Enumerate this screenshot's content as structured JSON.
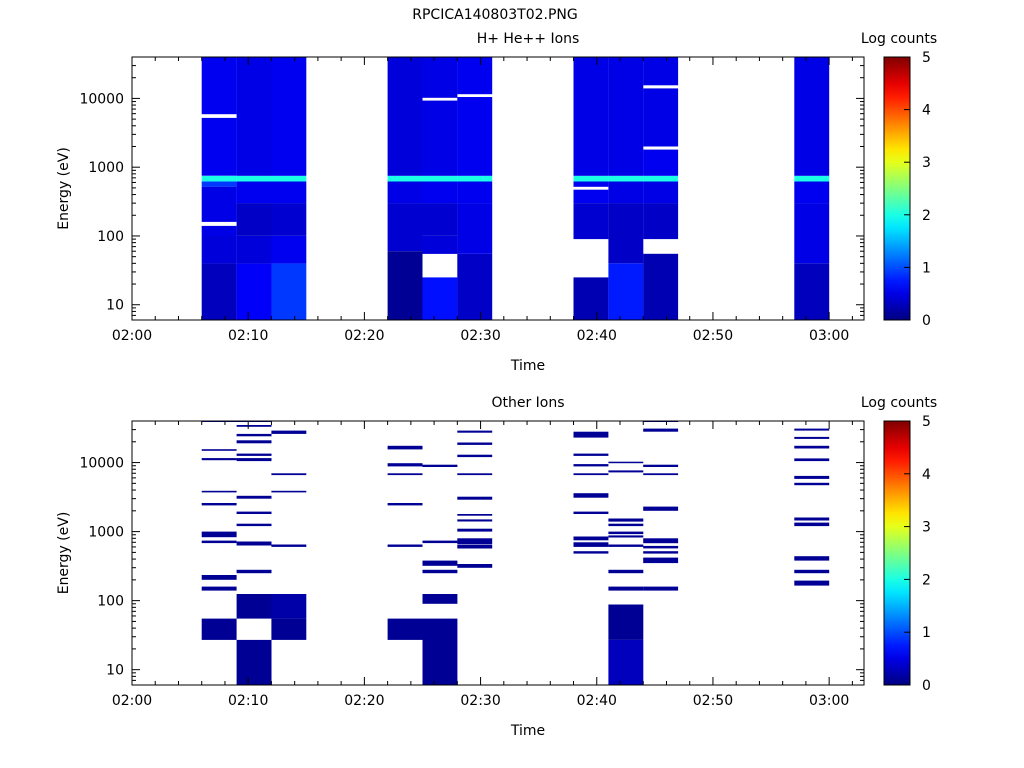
{
  "figure_title": "RPCICA140803T02.PNG",
  "colors": {
    "axis": "#000000",
    "background": "#ffffff"
  },
  "chart_data": [
    {
      "type": "heatmap",
      "title": "H+ He++ Ions",
      "xlabel": "Time",
      "ylabel": "Energy (eV)",
      "xscale": "time",
      "yscale": "log",
      "xlim": [
        "02:00",
        "03:03"
      ],
      "ylim": [
        6,
        40000
      ],
      "x_ticks": [
        "02:00",
        "02:10",
        "02:20",
        "02:30",
        "02:40",
        "02:50",
        "03:00"
      ],
      "y_ticks": [
        "10",
        "100",
        "1000",
        "10000"
      ],
      "colorbar": {
        "label": "Log counts",
        "ticks": [
          "0",
          "1",
          "2",
          "3",
          "4",
          "5"
        ],
        "range": [
          0,
          5
        ],
        "colormap": "jet"
      },
      "columns": [
        {
          "t0": "02:06",
          "t1": "02:09",
          "cells": [
            [
              6,
              40,
              0.3
            ],
            [
              40,
              100,
              0.45
            ],
            [
              100,
              140,
              0.5
            ],
            [
              140,
              160,
              null
            ],
            [
              160,
              520,
              0.5
            ],
            [
              520,
              620,
              0.9
            ],
            [
              620,
              750,
              2.0
            ],
            [
              750,
              5200,
              0.55
            ],
            [
              5200,
              5900,
              null
            ],
            [
              5900,
              40000,
              0.55
            ]
          ]
        },
        {
          "t0": "02:09",
          "t1": "02:12",
          "cells": [
            [
              6,
              40,
              0.6
            ],
            [
              40,
              100,
              0.45
            ],
            [
              100,
              300,
              0.35
            ],
            [
              300,
              620,
              0.55
            ],
            [
              620,
              750,
              2.0
            ],
            [
              750,
              40000,
              0.5
            ]
          ]
        },
        {
          "t0": "02:12",
          "t1": "02:15",
          "cells": [
            [
              6,
              40,
              0.9
            ],
            [
              40,
              100,
              0.55
            ],
            [
              100,
              300,
              0.4
            ],
            [
              300,
              620,
              0.55
            ],
            [
              620,
              750,
              2.0
            ],
            [
              750,
              40000,
              0.55
            ]
          ]
        },
        {
          "t0": "02:22",
          "t1": "02:25",
          "cells": [
            [
              6,
              60,
              0.1
            ],
            [
              60,
              300,
              0.4
            ],
            [
              300,
              620,
              0.5
            ],
            [
              620,
              750,
              2.0
            ],
            [
              750,
              40000,
              0.45
            ]
          ]
        },
        {
          "t0": "02:25",
          "t1": "02:28",
          "cells": [
            [
              6,
              25,
              0.7
            ],
            [
              25,
              55,
              null
            ],
            [
              55,
              100,
              0.45
            ],
            [
              100,
              300,
              0.4
            ],
            [
              300,
              620,
              0.55
            ],
            [
              620,
              750,
              2.0
            ],
            [
              750,
              9300,
              0.5
            ],
            [
              9300,
              10200,
              null
            ],
            [
              10200,
              40000,
              0.5
            ]
          ]
        },
        {
          "t0": "02:28",
          "t1": "02:31",
          "cells": [
            [
              6,
              55,
              0.35
            ],
            [
              55,
              300,
              0.5
            ],
            [
              300,
              620,
              0.55
            ],
            [
              620,
              750,
              2.0
            ],
            [
              750,
              10500,
              0.55
            ],
            [
              10500,
              11500,
              null
            ],
            [
              11500,
              40000,
              0.55
            ]
          ]
        },
        {
          "t0": "02:38",
          "t1": "02:41",
          "cells": [
            [
              6,
              25,
              0.25
            ],
            [
              25,
              90,
              null
            ],
            [
              90,
              300,
              0.4
            ],
            [
              300,
              470,
              0.55
            ],
            [
              470,
              520,
              null
            ],
            [
              520,
              620,
              0.55
            ],
            [
              620,
              750,
              2.0
            ],
            [
              750,
              40000,
              0.5
            ]
          ]
        },
        {
          "t0": "02:41",
          "t1": "02:44",
          "cells": [
            [
              6,
              40,
              0.75
            ],
            [
              40,
              300,
              0.35
            ],
            [
              300,
              620,
              0.5
            ],
            [
              620,
              750,
              2.0
            ],
            [
              750,
              40000,
              0.5
            ]
          ]
        },
        {
          "t0": "02:44",
          "t1": "02:47",
          "cells": [
            [
              6,
              55,
              0.25
            ],
            [
              55,
              90,
              null
            ],
            [
              90,
              300,
              0.35
            ],
            [
              300,
              620,
              0.5
            ],
            [
              620,
              750,
              2.0
            ],
            [
              750,
              1800,
              0.55
            ],
            [
              1800,
              2000,
              null
            ],
            [
              2000,
              14000,
              0.5
            ],
            [
              14000,
              15500,
              null
            ],
            [
              15500,
              40000,
              0.5
            ]
          ]
        },
        {
          "t0": "02:57",
          "t1": "03:00",
          "cells": [
            [
              6,
              40,
              0.3
            ],
            [
              40,
              300,
              0.5
            ],
            [
              300,
              620,
              0.55
            ],
            [
              620,
              750,
              2.0
            ],
            [
              750,
              40000,
              0.5
            ]
          ]
        }
      ]
    },
    {
      "type": "heatmap",
      "title": "Other Ions",
      "xlabel": "Time",
      "ylabel": "Energy (eV)",
      "xscale": "time",
      "yscale": "log",
      "xlim": [
        "02:00",
        "03:03"
      ],
      "ylim": [
        6,
        40000
      ],
      "x_ticks": [
        "02:00",
        "02:10",
        "02:20",
        "02:30",
        "02:40",
        "02:50",
        "03:00"
      ],
      "y_ticks": [
        "10",
        "100",
        "1000",
        "10000"
      ],
      "colorbar": {
        "label": "Log counts",
        "ticks": [
          "0",
          "1",
          "2",
          "3",
          "4",
          "5"
        ],
        "range": [
          0,
          5
        ],
        "colormap": "jet"
      },
      "columns": [
        {
          "t0": "02:06",
          "t1": "02:09",
          "cells": [
            [
              27,
              55,
              0.1
            ],
            [
              140,
              160,
              0.1
            ],
            [
              200,
              235,
              0.1
            ],
            [
              680,
              740,
              0.1
            ],
            [
              830,
              1000,
              0.1
            ],
            [
              2400,
              2600,
              0.1
            ],
            [
              3700,
              3900,
              0.1
            ],
            [
              10800,
              11600,
              0.1
            ],
            [
              14800,
              15600,
              0.1
            ],
            [
              39000,
              41000,
              0.1
            ]
          ]
        },
        {
          "t0": "02:09",
          "t1": "02:12",
          "cells": [
            [
              6,
              27,
              0.1
            ],
            [
              55,
              125,
              0.1
            ],
            [
              250,
              280,
              0.1
            ],
            [
              630,
              720,
              0.1
            ],
            [
              1200,
              1300,
              0.1
            ],
            [
              1800,
              1950,
              0.1
            ],
            [
              3000,
              3300,
              0.1
            ],
            [
              10500,
              11600,
              0.1
            ],
            [
              12500,
              13500,
              0.1
            ],
            [
              19000,
              21000,
              0.1
            ],
            [
              24000,
              26000,
              0.1
            ],
            [
              33000,
              35000,
              0.1
            ],
            [
              39000,
              41000,
              0.1
            ]
          ]
        },
        {
          "t0": "02:12",
          "t1": "02:15",
          "cells": [
            [
              27,
              55,
              0.1
            ],
            [
              55,
              125,
              0.2
            ],
            [
              600,
              650,
              0.1
            ],
            [
              3700,
              3900,
              0.1
            ],
            [
              6600,
              7000,
              0.1
            ],
            [
              26000,
              29000,
              0.1
            ]
          ]
        },
        {
          "t0": "02:22",
          "t1": "02:25",
          "cells": [
            [
              27,
              55,
              0.1
            ],
            [
              600,
              650,
              0.1
            ],
            [
              2400,
              2600,
              0.1
            ],
            [
              6600,
              7000,
              0.1
            ],
            [
              8800,
              9800,
              0.1
            ],
            [
              15500,
              17500,
              0.1
            ]
          ]
        },
        {
          "t0": "02:25",
          "t1": "02:28",
          "cells": [
            [
              6,
              55,
              0.1
            ],
            [
              90,
              125,
              0.1
            ],
            [
              250,
              280,
              0.1
            ],
            [
              320,
              380,
              0.1
            ],
            [
              680,
              740,
              0.1
            ],
            [
              8600,
              9300,
              0.1
            ]
          ]
        },
        {
          "t0": "02:28",
          "t1": "02:31",
          "cells": [
            [
              300,
              340,
              0.1
            ],
            [
              570,
              640,
              0.1
            ],
            [
              650,
              800,
              0.1
            ],
            [
              1000,
              1100,
              0.1
            ],
            [
              1400,
              1500,
              0.1
            ],
            [
              1700,
              1800,
              0.1
            ],
            [
              2900,
              3200,
              0.1
            ],
            [
              6600,
              7000,
              0.1
            ],
            [
              12000,
              13000,
              0.1
            ],
            [
              18000,
              19500,
              0.1
            ],
            [
              27000,
              29000,
              0.1
            ]
          ]
        },
        {
          "t0": "02:38",
          "t1": "02:41",
          "cells": [
            [
              480,
              520,
              0.1
            ],
            [
              600,
              700,
              0.1
            ],
            [
              750,
              850,
              0.1
            ],
            [
              1800,
              1950,
              0.1
            ],
            [
              3100,
              3600,
              0.1
            ],
            [
              6600,
              7000,
              0.1
            ],
            [
              8800,
              9500,
              0.1
            ],
            [
              12500,
              13500,
              0.1
            ],
            [
              23000,
              28000,
              0.1
            ]
          ]
        },
        {
          "t0": "02:41",
          "t1": "02:44",
          "cells": [
            [
              6,
              27,
              0.3
            ],
            [
              27,
              88,
              0.1
            ],
            [
              140,
              160,
              0.1
            ],
            [
              250,
              280,
              0.1
            ],
            [
              600,
              650,
              0.1
            ],
            [
              820,
              880,
              0.1
            ],
            [
              920,
              1000,
              0.1
            ],
            [
              1200,
              1300,
              0.1
            ],
            [
              1400,
              1550,
              0.1
            ],
            [
              7200,
              7700,
              0.1
            ],
            [
              9800,
              10300,
              0.1
            ]
          ]
        },
        {
          "t0": "02:44",
          "t1": "02:47",
          "cells": [
            [
              140,
              160,
              0.1
            ],
            [
              350,
              420,
              0.1
            ],
            [
              480,
              520,
              0.1
            ],
            [
              570,
              620,
              0.1
            ],
            [
              680,
              800,
              0.1
            ],
            [
              2000,
              2300,
              0.1
            ],
            [
              6600,
              7000,
              0.1
            ],
            [
              8600,
              9300,
              0.1
            ],
            [
              28000,
              31000,
              0.1
            ],
            [
              39000,
              41000,
              0.1
            ]
          ]
        },
        {
          "t0": "02:57",
          "t1": "03:00",
          "cells": [
            [
              165,
              195,
              0.1
            ],
            [
              250,
              280,
              0.1
            ],
            [
              380,
              440,
              0.1
            ],
            [
              1200,
              1350,
              0.1
            ],
            [
              1450,
              1600,
              0.1
            ],
            [
              4700,
              5100,
              0.1
            ],
            [
              5800,
              6400,
              0.1
            ],
            [
              10500,
              11500,
              0.1
            ],
            [
              16000,
              17500,
              0.1
            ],
            [
              22000,
              23500,
              0.1
            ],
            [
              29000,
              31000,
              0.1
            ]
          ]
        }
      ]
    }
  ]
}
